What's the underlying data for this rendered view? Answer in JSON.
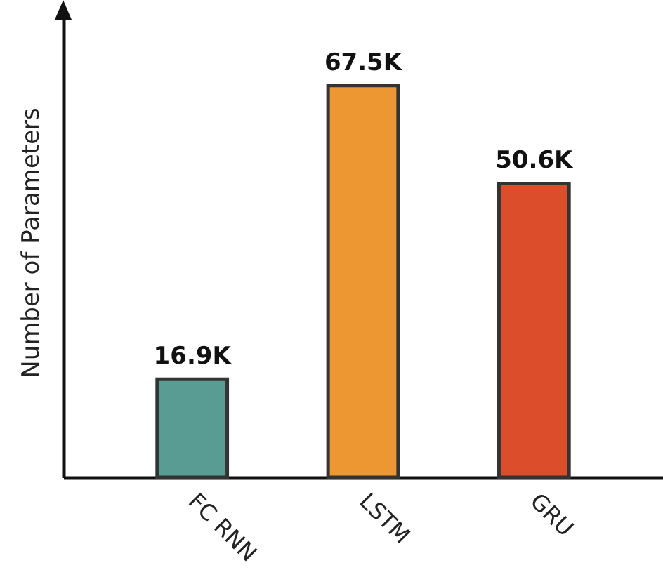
{
  "chart_data": {
    "type": "bar",
    "ylabel": "Number of Parameters",
    "categories": [
      "FC RNN",
      "LSTM",
      "GRU"
    ],
    "values": [
      16900,
      67500,
      50600
    ],
    "value_labels": [
      "16.9K",
      "67.5K",
      "50.6K"
    ],
    "colors": [
      "#589c94",
      "#ed9733",
      "#dc4e2b"
    ],
    "ylim": [
      0,
      81000
    ],
    "tick_labels": "x"
  }
}
